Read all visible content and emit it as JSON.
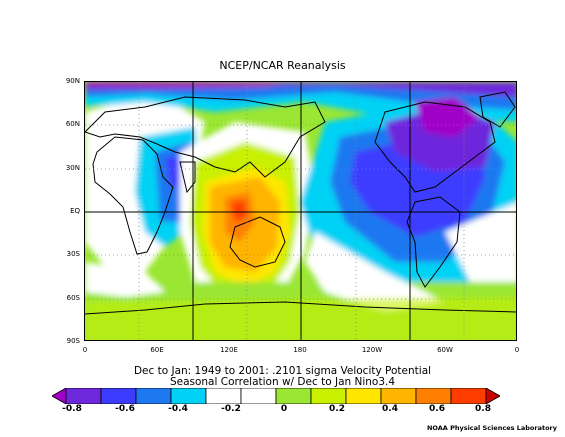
{
  "title": "NCEP/NCAR Reanalysis",
  "lat_labels": [
    "90N",
    "60N",
    "30N",
    "EQ",
    "30S",
    "60S",
    "90S"
  ],
  "lon_labels": [
    "0",
    "60E",
    "120E",
    "180",
    "120W",
    "60W",
    "0"
  ],
  "caption_line1": "Dec to Jan: 1949 to 2001: .2101 sigma Velocity Potential",
  "caption_line2": "Seasonal Correlation w/ Dec to Jan Nino3.4",
  "colorbar": {
    "labels": [
      "-0.8",
      "-0.6",
      "-0.4",
      "-0.2",
      "0",
      "0.2",
      "0.4",
      "0.6",
      "0.8"
    ],
    "colors": [
      "#a000c8",
      "#6e28dc",
      "#3c3cff",
      "#1e78f0",
      "#00d2f5",
      "#ffffff",
      "#ffffff",
      "#9ae632",
      "#c8f000",
      "#ffe600",
      "#ffb400",
      "#ff8000",
      "#ff3c00",
      "#c80000"
    ]
  },
  "credit": "NOAA Physical Sciences Laboratory"
}
